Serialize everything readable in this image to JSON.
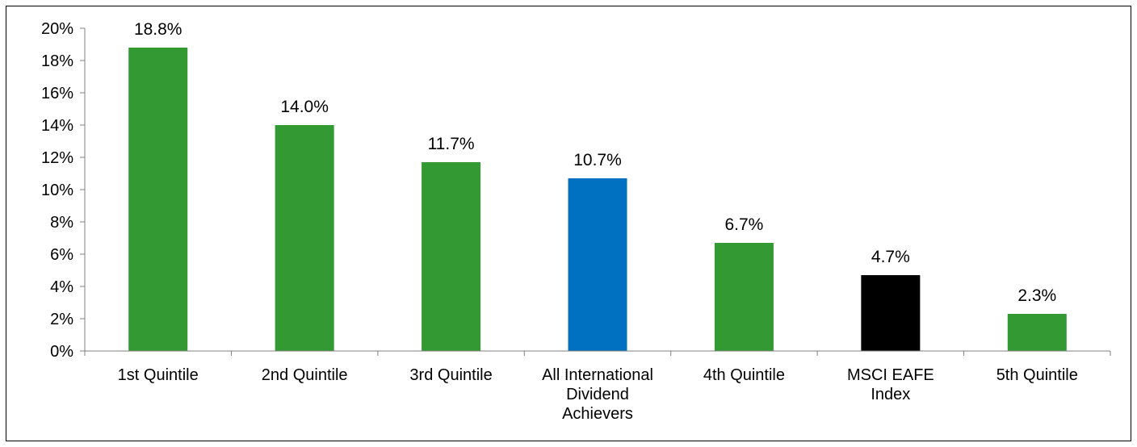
{
  "chart_data": {
    "type": "bar",
    "title": "",
    "xlabel": "",
    "ylabel": "",
    "ylim": [
      0,
      20
    ],
    "ytick_step": 2,
    "ytick_labels": [
      "0%",
      "2%",
      "4%",
      "6%",
      "8%",
      "10%",
      "12%",
      "14%",
      "16%",
      "18%",
      "20%"
    ],
    "categories": [
      [
        "1st Quintile"
      ],
      [
        "2nd Quintile"
      ],
      [
        "3rd Quintile"
      ],
      [
        "All International",
        "Dividend",
        "Achievers"
      ],
      [
        "4th Quintile"
      ],
      [
        "MSCI EAFE",
        "Index"
      ],
      [
        "5th Quintile"
      ]
    ],
    "values": [
      18.8,
      14.0,
      11.7,
      10.7,
      6.7,
      4.7,
      2.3
    ],
    "data_labels": [
      "18.8%",
      "14.0%",
      "11.7%",
      "10.7%",
      "6.7%",
      "4.7%",
      "2.3%"
    ],
    "bar_colors": [
      "#339933",
      "#339933",
      "#339933",
      "#0070c0",
      "#339933",
      "#000000",
      "#339933"
    ],
    "grid": false,
    "legend": "none"
  }
}
